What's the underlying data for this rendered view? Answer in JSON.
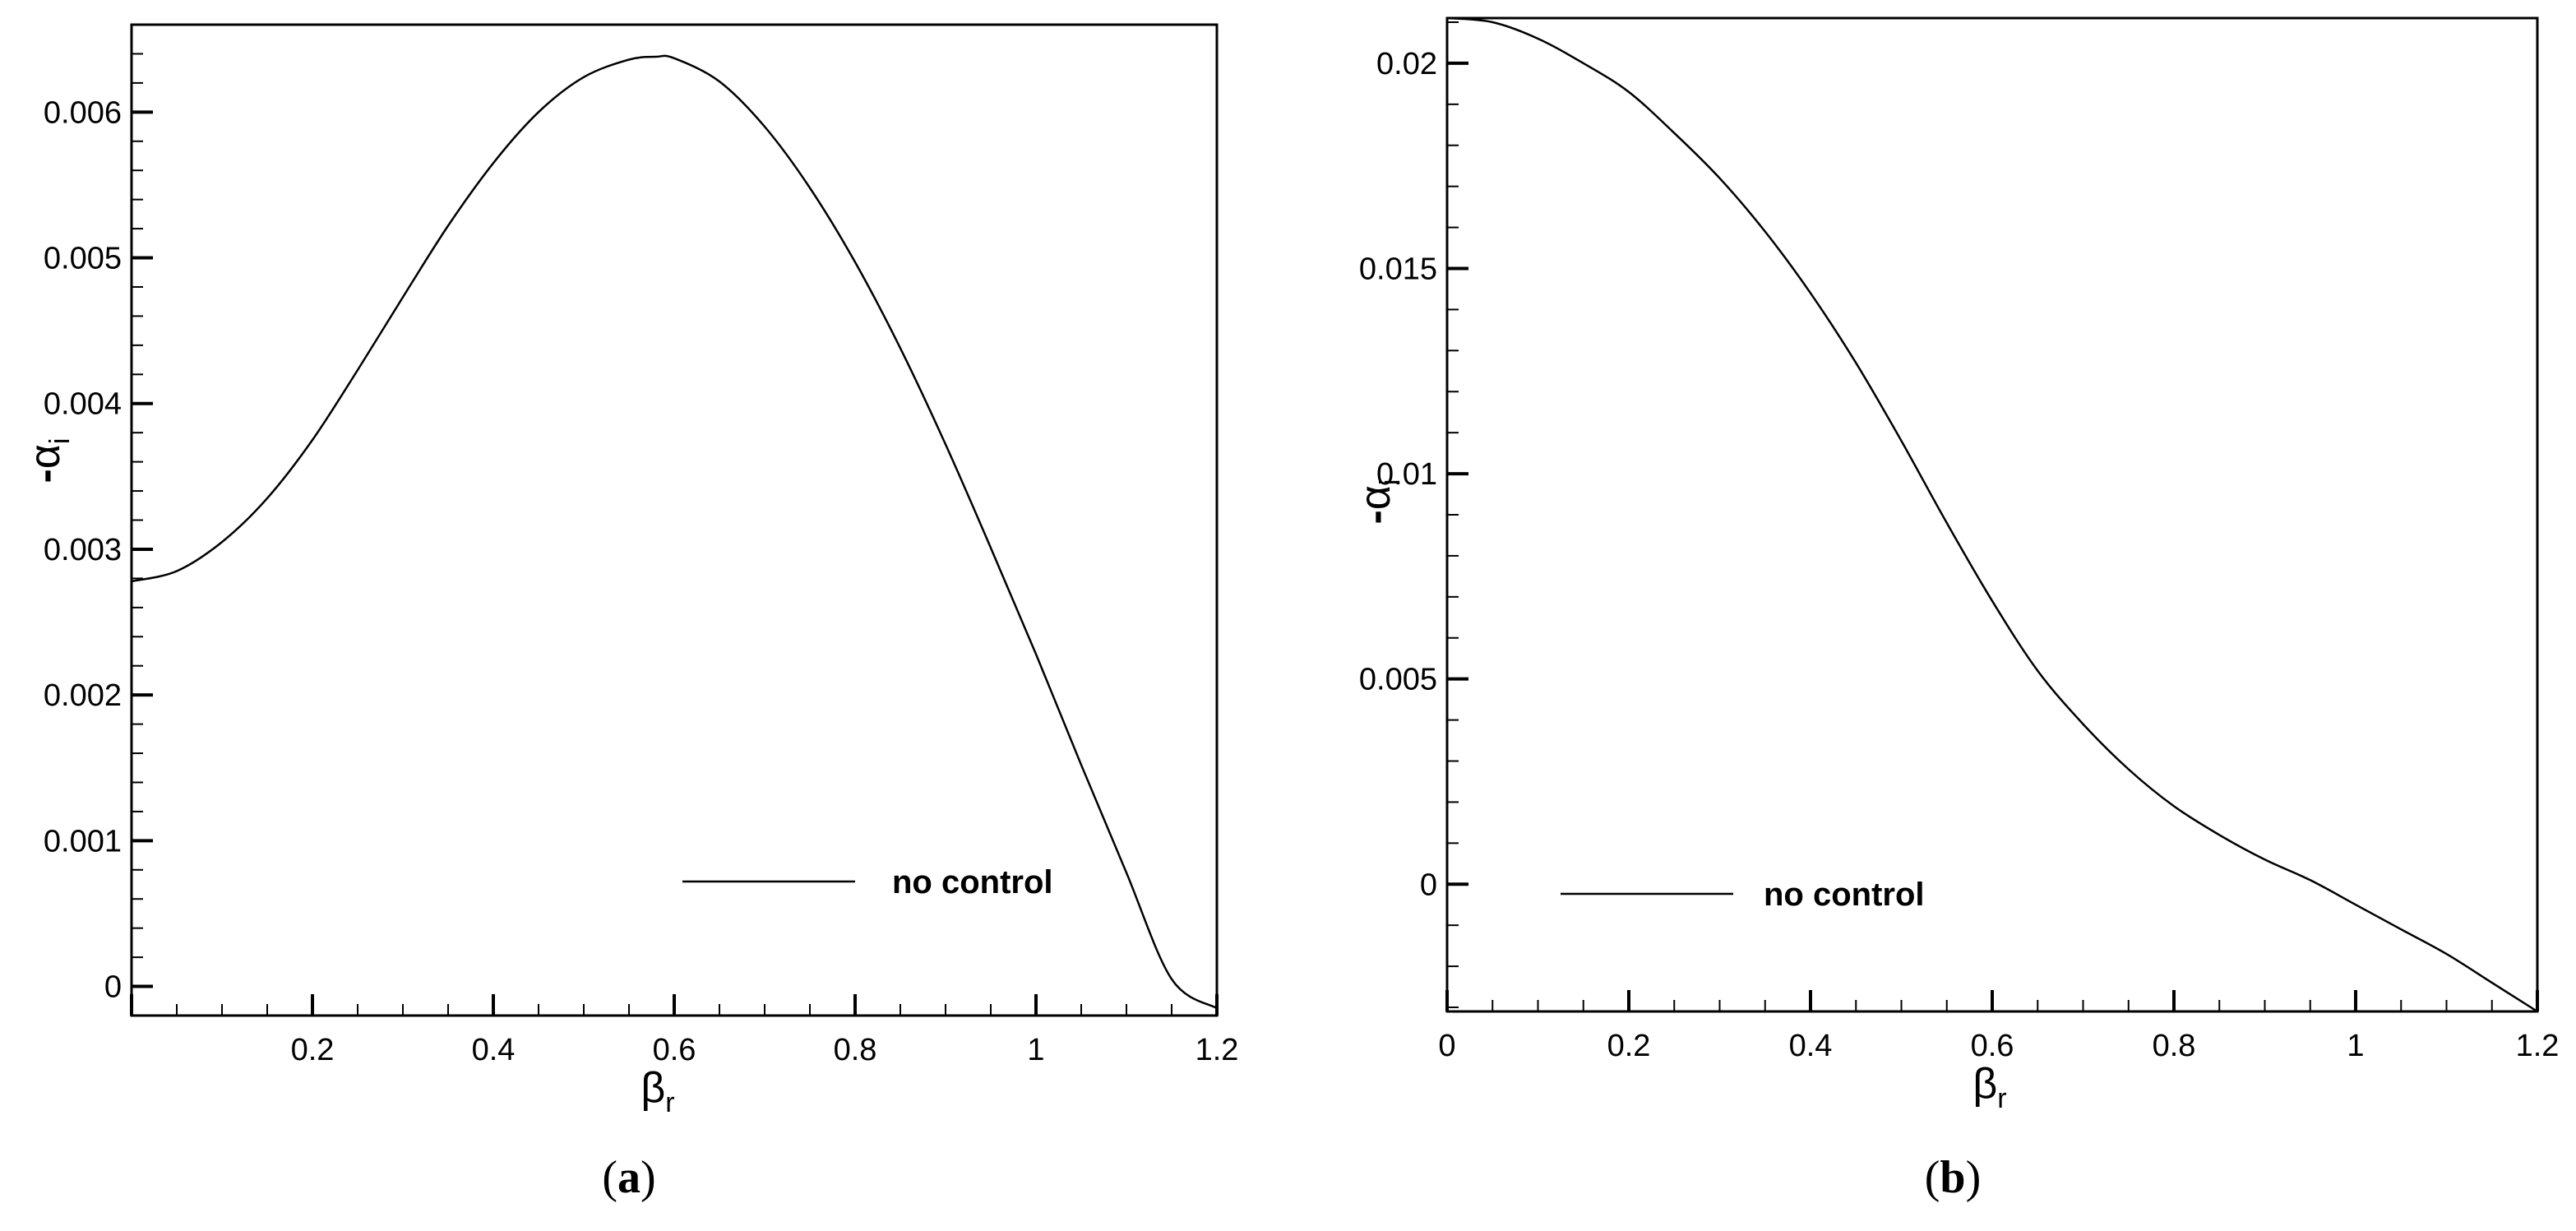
{
  "chart_data": [
    {
      "type": "line",
      "panel_label": {
        "open": "(",
        "letter": "a",
        "close": ")"
      },
      "xlabel": {
        "symbol": "β",
        "subscript": "r"
      },
      "ylabel": {
        "prefix": "-",
        "symbol": "α",
        "subscript": "i"
      },
      "xlim": [
        0,
        1.2
      ],
      "ylim": [
        -0.0002,
        0.0066
      ],
      "grid": false,
      "legend_position": "bottom-center",
      "x_ticks": [
        {
          "value": 0.2,
          "label": "0.2"
        },
        {
          "value": 0.4,
          "label": "0.4"
        },
        {
          "value": 0.6,
          "label": "0.6"
        },
        {
          "value": 0.8,
          "label": "0.8"
        },
        {
          "value": 1.0,
          "label": "1"
        },
        {
          "value": 1.2,
          "label": "1.2"
        }
      ],
      "y_ticks": [
        {
          "value": 0,
          "label": "0"
        },
        {
          "value": 0.001,
          "label": "0.001"
        },
        {
          "value": 0.002,
          "label": "0.002"
        },
        {
          "value": 0.003,
          "label": "0.003"
        },
        {
          "value": 0.004,
          "label": "0.004"
        },
        {
          "value": 0.005,
          "label": "0.005"
        },
        {
          "value": 0.006,
          "label": "0.006"
        }
      ],
      "series": [
        {
          "name": "no control",
          "color": "#000000",
          "x": [
            0,
            0.05,
            0.1,
            0.15,
            0.2,
            0.25,
            0.3,
            0.35,
            0.4,
            0.45,
            0.5,
            0.55,
            0.58,
            0.6,
            0.65,
            0.7,
            0.75,
            0.8,
            0.85,
            0.9,
            0.95,
            1.0,
            1.05,
            1.1,
            1.15,
            1.2
          ],
          "y": [
            0.00278,
            0.00285,
            0.00305,
            0.00335,
            0.00375,
            0.00423,
            0.00473,
            0.00522,
            0.00565,
            0.006,
            0.00624,
            0.00636,
            0.00638,
            0.00637,
            0.00621,
            0.0059,
            0.00548,
            0.00497,
            0.00438,
            0.00372,
            0.00301,
            0.00228,
            0.00152,
            0.00078,
            5e-05,
            -0.00015
          ]
        }
      ]
    },
    {
      "type": "line",
      "panel_label": {
        "open": "(",
        "letter": "b",
        "close": ")"
      },
      "xlabel": {
        "symbol": "β",
        "subscript": "r"
      },
      "ylabel": {
        "prefix": "-",
        "symbol": "α",
        "subscript": "i"
      },
      "xlim": [
        0,
        1.2
      ],
      "ylim": [
        -0.0031,
        0.0211
      ],
      "grid": false,
      "legend_position": "bottom-left",
      "x_ticks": [
        {
          "value": 0,
          "label": "0"
        },
        {
          "value": 0.2,
          "label": "0.2"
        },
        {
          "value": 0.4,
          "label": "0.4"
        },
        {
          "value": 0.6,
          "label": "0.6"
        },
        {
          "value": 0.8,
          "label": "0.8"
        },
        {
          "value": 1.0,
          "label": "1"
        },
        {
          "value": 1.2,
          "label": "1.2"
        }
      ],
      "y_ticks": [
        {
          "value": 0,
          "label": "0"
        },
        {
          "value": 0.005,
          "label": "0.005"
        },
        {
          "value": 0.01,
          "label": "0.01"
        },
        {
          "value": 0.015,
          "label": "0.015"
        },
        {
          "value": 0.02,
          "label": "0.02"
        }
      ],
      "series": [
        {
          "name": "no control",
          "color": "#000000",
          "x": [
            0,
            0.05,
            0.1,
            0.15,
            0.2,
            0.25,
            0.3,
            0.35,
            0.4,
            0.45,
            0.5,
            0.55,
            0.6,
            0.65,
            0.7,
            0.75,
            0.8,
            0.85,
            0.9,
            0.95,
            1.0,
            1.05,
            1.1,
            1.15,
            1.2
          ],
          "y": [
            0.0211,
            0.021,
            0.0206,
            0.02,
            0.0193,
            0.0183,
            0.0172,
            0.0159,
            0.0144,
            0.0127,
            0.0108,
            0.0088,
            0.0069,
            0.0052,
            0.0039,
            0.0028,
            0.0019,
            0.0012,
            0.0006,
            0.0001,
            -0.0005,
            -0.0011,
            -0.0017,
            -0.0024,
            -0.0031
          ]
        }
      ]
    }
  ]
}
